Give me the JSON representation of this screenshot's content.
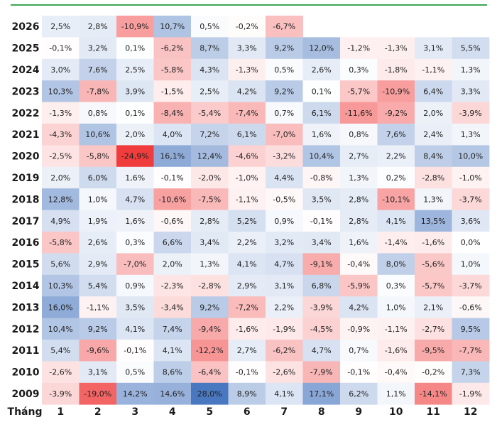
{
  "chart_data": {
    "type": "heatmap",
    "x_axis_title": "Tháng",
    "months": [
      "1",
      "2",
      "3",
      "4",
      "5",
      "6",
      "7",
      "8",
      "9",
      "10",
      "11",
      "12"
    ],
    "years": [
      "2026",
      "2025",
      "2024",
      "2023",
      "2022",
      "2021",
      "2020",
      "2019",
      "2018",
      "2017",
      "2016",
      "2015",
      "2014",
      "2013",
      "2012",
      "2011",
      "2010",
      "2009"
    ],
    "values": [
      [
        "2,5%",
        "2,8%",
        "-10,9%",
        "10,7%",
        "0,5%",
        "-0,2%",
        "-6,7%",
        "",
        "",
        "",
        "",
        ""
      ],
      [
        "-0,1%",
        "3,2%",
        "0,1%",
        "-6,2%",
        "8,7%",
        "3,3%",
        "9,2%",
        "12,0%",
        "-1,2%",
        "-1,3%",
        "3,1%",
        "5,5%"
      ],
      [
        "3,0%",
        "7,6%",
        "2,5%",
        "-5,8%",
        "4,3%",
        "-1,3%",
        "0,5%",
        "2,6%",
        "0,3%",
        "-1,8%",
        "-1,1%",
        "1,3%"
      ],
      [
        "10,3%",
        "-7,8%",
        "3,9%",
        "-1,5%",
        "2,5%",
        "4,2%",
        "9,2%",
        "0,1%",
        "-5,7%",
        "-10,9%",
        "6,4%",
        "3,3%"
      ],
      [
        "-1,3%",
        "0,8%",
        "0,1%",
        "-8,4%",
        "-5,4%",
        "-7,4%",
        "0,7%",
        "6,1%",
        "-11,6%",
        "-9,2%",
        "2,0%",
        "-3,9%"
      ],
      [
        "-4,3%",
        "10,6%",
        "2,0%",
        "4,0%",
        "7,2%",
        "6,1%",
        "-7,0%",
        "1,6%",
        "0,8%",
        "7,6%",
        "2,4%",
        "1,3%"
      ],
      [
        "-2,5%",
        "-5,8%",
        "-24,9%",
        "16,1%",
        "12,4%",
        "-4,6%",
        "-3,2%",
        "10,4%",
        "2,7%",
        "2,2%",
        "8,4%",
        "10,0%"
      ],
      [
        "2,0%",
        "6,0%",
        "1,6%",
        "-0,1%",
        "-2,0%",
        "-1,0%",
        "4,4%",
        "-0,8%",
        "1,3%",
        "0,2%",
        "-2,8%",
        "-1,0%"
      ],
      [
        "12,8%",
        "1,0%",
        "4,7%",
        "-10,6%",
        "-7,5%",
        "-1,1%",
        "-0,5%",
        "3,5%",
        "2,8%",
        "-10,1%",
        "1,3%",
        "-3,7%"
      ],
      [
        "4,9%",
        "1,9%",
        "1,6%",
        "-0,6%",
        "2,8%",
        "5,2%",
        "0,9%",
        "-0,1%",
        "2,8%",
        "4,1%",
        "13,5%",
        "3,6%"
      ],
      [
        "-5,8%",
        "2,6%",
        "0,3%",
        "6,6%",
        "3,4%",
        "2,2%",
        "3,2%",
        "3,4%",
        "1,6%",
        "-1,4%",
        "-1,6%",
        "0,0%"
      ],
      [
        "5,6%",
        "2,9%",
        "-7,0%",
        "2,0%",
        "1,3%",
        "4,1%",
        "4,7%",
        "-9,1%",
        "-0,4%",
        "8,0%",
        "-5,6%",
        "1,0%"
      ],
      [
        "10,3%",
        "5,4%",
        "0,9%",
        "-2,3%",
        "-2,8%",
        "2,9%",
        "3,1%",
        "6,8%",
        "-5,9%",
        "0,3%",
        "-5,7%",
        "-3,7%"
      ],
      [
        "16,0%",
        "-1,1%",
        "3,5%",
        "-3,4%",
        "9,2%",
        "-7,2%",
        "2,2%",
        "-3,9%",
        "4,2%",
        "1,0%",
        "2,1%",
        "-0,6%"
      ],
      [
        "10,4%",
        "9,2%",
        "4,1%",
        "7,4%",
        "-9,4%",
        "-1,6%",
        "-1,9%",
        "-4,5%",
        "-0,9%",
        "-1,1%",
        "-2,7%",
        "9,5%"
      ],
      [
        "5,4%",
        "-9,6%",
        "-0,1%",
        "4,1%",
        "-12,2%",
        "2,7%",
        "-6,2%",
        "4,7%",
        "0,7%",
        "-1,6%",
        "-9,5%",
        "-7,7%"
      ],
      [
        "-2,6%",
        "3,1%",
        "0,5%",
        "8,6%",
        "-6,4%",
        "-0,1%",
        "-2,6%",
        "-7,9%",
        "-0,1%",
        "-0,4%",
        "-0,2%",
        "7,3%"
      ],
      [
        "-3,9%",
        "-19,0%",
        "14,2%",
        "14,6%",
        "28,0%",
        "8,9%",
        "4,1%",
        "17,1%",
        "6,2%",
        "1,1%",
        "-14,1%",
        "-1,9%"
      ]
    ],
    "color_scale": {
      "negative_max": "#f03c3c",
      "neutral": "#ffffff",
      "positive_max": "#4a78c0",
      "negative_extreme_value": -24.9,
      "positive_extreme_value": 28.0
    },
    "accent_line_color": "#3aa655"
  }
}
